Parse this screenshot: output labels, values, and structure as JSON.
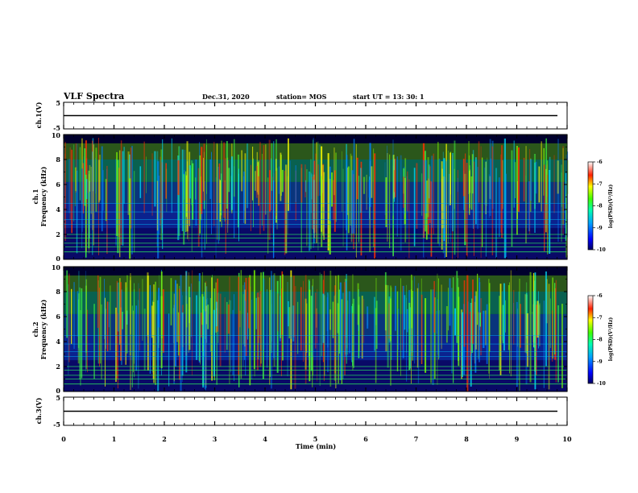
{
  "chart_data": {
    "type": "heatmap",
    "title": "VLF Spectra",
    "header": {
      "date": "Dec.31, 2020",
      "station": "station= MOS",
      "start": "start  UT =   13: 30: 1"
    },
    "xlabel": "Time  (min)",
    "xlim": [
      0,
      10
    ],
    "x_ticks": [
      "0",
      "1",
      "2",
      "3",
      "4",
      "5",
      "6",
      "7",
      "8",
      "9",
      "10"
    ],
    "panels": [
      {
        "id": "ch1-waveform",
        "type": "line",
        "ylabel": "ch.1(V)",
        "ylim": [
          -5,
          5
        ],
        "y_ticks": [
          "5",
          "-5"
        ],
        "level": 0
      },
      {
        "id": "ch1-spectrogram",
        "type": "heatmap",
        "ylabel_top": "ch.1",
        "ylabel": "Frequency (kHz)",
        "ylim": [
          0,
          10
        ],
        "y_ticks": [
          "0",
          "2",
          "4",
          "6",
          "8",
          "10"
        ]
      },
      {
        "id": "ch2-spectrogram",
        "type": "heatmap",
        "ylabel_top": "ch.2",
        "ylabel": "Frequency (kHz)",
        "ylim": [
          0,
          10
        ],
        "y_ticks": [
          "0",
          "2",
          "4",
          "6",
          "8",
          "10"
        ]
      },
      {
        "id": "ch3-waveform",
        "type": "line",
        "ylabel": "ch.3(V)",
        "ylim": [
          -5,
          5
        ],
        "y_ticks": [
          "5",
          "-5"
        ],
        "level": 0
      }
    ],
    "colorbar": {
      "label": "log(PSD)(V²/Hz)",
      "range": [
        -10,
        -6
      ],
      "ticks": [
        "-6",
        "-7",
        "-8",
        "-9",
        "-10"
      ]
    }
  }
}
